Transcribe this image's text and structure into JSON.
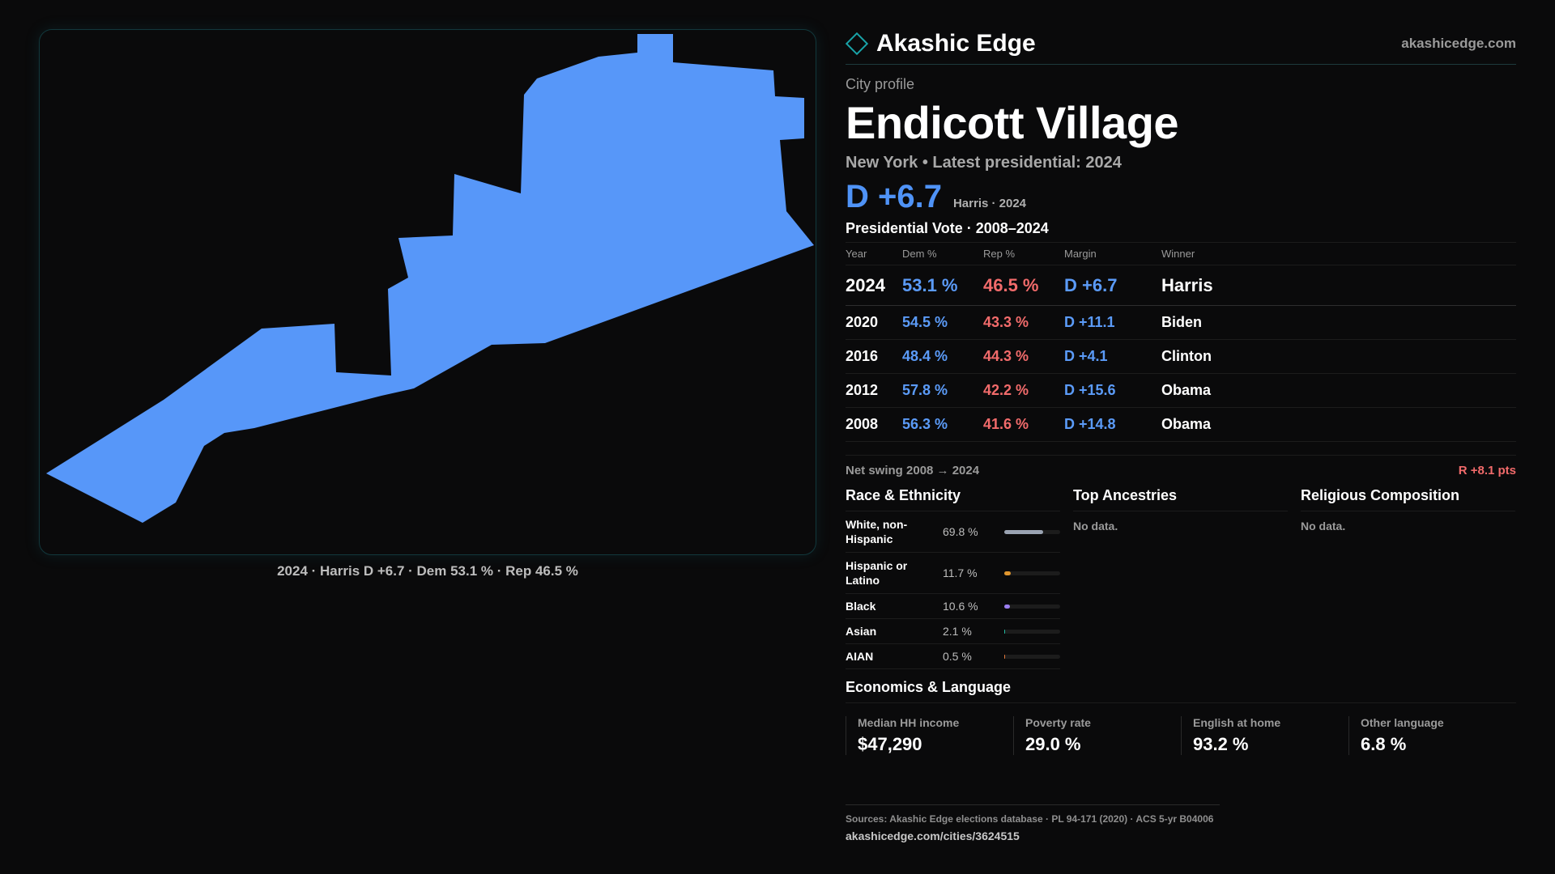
{
  "header": {
    "brand": "Akashic Edge",
    "site": "akashicedge.com",
    "logo_icon": "diamond-outline-icon",
    "accent": "#19a3a8"
  },
  "map": {
    "caption": "2024 · Harris D +6.7 · Dem 53.1 % · Rep 46.5 %",
    "fill": "#5797f9",
    "background": "#0a0a0b"
  },
  "profile": {
    "eyebrow": "City profile",
    "name": "Endicott Village",
    "subline": "New York • Latest presidential: 2024",
    "margin": "D +6.7",
    "margin_note": "Harris · 2024",
    "dem_color": "#5b9bf8",
    "rep_color": "#f26b6b"
  },
  "votes": {
    "title": "Presidential Vote · 2008–2024",
    "headers": [
      "Year",
      "Dem %",
      "Rep %",
      "Margin",
      "Winner"
    ],
    "rows": [
      {
        "year": "2024",
        "dem": "53.1 %",
        "rep": "46.5 %",
        "margin": "D +6.7",
        "winner": "Harris"
      },
      {
        "year": "2020",
        "dem": "54.5 %",
        "rep": "43.3 %",
        "margin": "D +11.1",
        "winner": "Biden"
      },
      {
        "year": "2016",
        "dem": "48.4 %",
        "rep": "44.3 %",
        "margin": "D +4.1",
        "winner": "Clinton"
      },
      {
        "year": "2012",
        "dem": "57.8 %",
        "rep": "42.2 %",
        "margin": "D +15.6",
        "winner": "Obama"
      },
      {
        "year": "2008",
        "dem": "56.3 %",
        "rep": "41.6 %",
        "margin": "D +14.8",
        "winner": "Obama"
      }
    ],
    "swing_label": "Net swing 2008 → 2024",
    "swing_value": "R +8.1 pts"
  },
  "race": {
    "title": "Race & Ethnicity",
    "rows": [
      {
        "label": "White, non-Hispanic",
        "value": "69.8 %",
        "share": 69.8,
        "color": "#9aa3b2"
      },
      {
        "label": "Hispanic or Latino",
        "value": "11.7 %",
        "share": 11.7,
        "color": "#e0962e"
      },
      {
        "label": "Black",
        "value": "10.6 %",
        "share": 10.6,
        "color": "#9a7ef0"
      },
      {
        "label": "Asian",
        "value": "2.1 %",
        "share": 2.1,
        "color": "#22b8a0"
      },
      {
        "label": "AIAN",
        "value": "0.5 %",
        "share": 0.5,
        "color": "#e0773a"
      }
    ]
  },
  "ancestries": {
    "title": "Top Ancestries",
    "empty": "No data."
  },
  "religion": {
    "title": "Religious Composition",
    "empty": "No data."
  },
  "economics": {
    "title": "Economics & Language",
    "cells": [
      {
        "label": "Median HH income",
        "value": "$47,290"
      },
      {
        "label": "Poverty rate",
        "value": "29.0 %"
      },
      {
        "label": "English at home",
        "value": "93.2 %"
      },
      {
        "label": "Other language",
        "value": "6.8 %"
      }
    ]
  },
  "footer": {
    "sources": "Sources: Akashic Edge elections database · PL 94-171 (2020) · ACS 5-yr B04006",
    "url": "akashicedge.com/cities/3624515"
  }
}
